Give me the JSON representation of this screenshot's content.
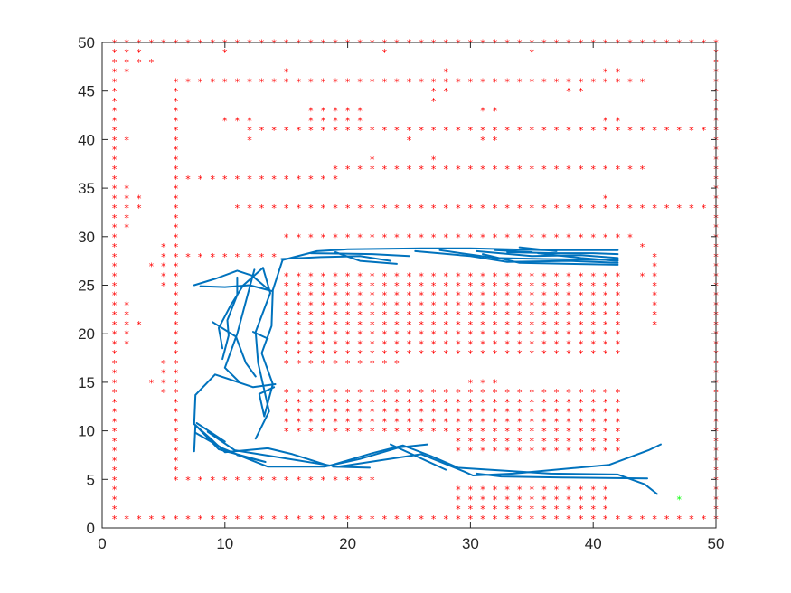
{
  "chart_data": {
    "type": "scatter",
    "xlim": [
      0,
      50
    ],
    "ylim": [
      0,
      50
    ],
    "xticks": [
      "0",
      "10",
      "20",
      "30",
      "40",
      "50"
    ],
    "yticks": [
      "0",
      "5",
      "10",
      "15",
      "20",
      "25",
      "30",
      "35",
      "40",
      "45",
      "50"
    ],
    "grid": false,
    "obstacle_color": "#ff0000",
    "path_color": "#0072bd",
    "goal_color": "#00ff00",
    "marker": "*",
    "obstacles": {
      "border": {
        "xmin": 1,
        "xmax": 50,
        "ymin": 1,
        "ymax": 50
      },
      "rows": [
        {
          "y": 46,
          "x": [
            7,
            44
          ]
        },
        {
          "y": 41,
          "x": [
            12,
            50
          ]
        },
        {
          "y": 37,
          "x": [
            19,
            44
          ]
        },
        {
          "y": 36,
          "x": [
            6,
            19
          ]
        },
        {
          "y": 33,
          "x": [
            11,
            50
          ]
        },
        {
          "y": 30,
          "x": [
            15,
            43
          ]
        },
        {
          "y": 28,
          "x": [
            6,
            14
          ]
        },
        {
          "y": 5,
          "x": [
            7,
            22
          ]
        }
      ],
      "cols": [
        {
          "x": 6,
          "y": [
            5,
            46
          ]
        },
        {
          "x": 45,
          "y": [
            21,
            28
          ]
        }
      ],
      "blocks": [
        {
          "x": [
            15,
            42
          ],
          "y": [
            18,
            26
          ]
        },
        {
          "x": [
            15,
            24
          ],
          "y": [
            17,
            17
          ]
        },
        {
          "x": [
            15,
            42
          ],
          "y": [
            10,
            14
          ]
        },
        {
          "x": [
            29,
            42
          ],
          "y": [
            8,
            9
          ]
        },
        {
          "x": [
            29,
            41
          ],
          "y": [
            1,
            4
          ]
        },
        {
          "x": [
            17,
            21
          ],
          "y": [
            42,
            43
          ]
        }
      ],
      "extra": [
        [
          2,
          49
        ],
        [
          3,
          49
        ],
        [
          2,
          48
        ],
        [
          3,
          48
        ],
        [
          2,
          47
        ],
        [
          4,
          48
        ],
        [
          2,
          40
        ],
        [
          2,
          35
        ],
        [
          2,
          34
        ],
        [
          3,
          34
        ],
        [
          2,
          33
        ],
        [
          3,
          33
        ],
        [
          2,
          32
        ],
        [
          2,
          31
        ],
        [
          10,
          49
        ],
        [
          23,
          49
        ],
        [
          35,
          49
        ],
        [
          15,
          47
        ],
        [
          28,
          47
        ],
        [
          28,
          45
        ],
        [
          27,
          45
        ],
        [
          27,
          44
        ],
        [
          38,
          45
        ],
        [
          39,
          45
        ],
        [
          6,
          45
        ],
        [
          41,
          47
        ],
        [
          42,
          47
        ],
        [
          10,
          42
        ],
        [
          11,
          42
        ],
        [
          12,
          42
        ],
        [
          12,
          40
        ],
        [
          25,
          40
        ],
        [
          31,
          43
        ],
        [
          32,
          43
        ],
        [
          31,
          40
        ],
        [
          32,
          40
        ],
        [
          41,
          42
        ],
        [
          42,
          42
        ],
        [
          22,
          38
        ],
        [
          27,
          38
        ],
        [
          41,
          34
        ],
        [
          5,
          29
        ],
        [
          5,
          28
        ],
        [
          5,
          27
        ],
        [
          4,
          27
        ],
        [
          5,
          26
        ],
        [
          5,
          25
        ],
        [
          2,
          23
        ],
        [
          2,
          22
        ],
        [
          2,
          21
        ],
        [
          3,
          21
        ],
        [
          2,
          20
        ],
        [
          2,
          19
        ],
        [
          5,
          17
        ],
        [
          5,
          16
        ],
        [
          4,
          15
        ],
        [
          5,
          15
        ],
        [
          5,
          14
        ],
        [
          44,
          29
        ],
        [
          44,
          26
        ],
        [
          30,
          15
        ],
        [
          31,
          15
        ],
        [
          32,
          15
        ]
      ]
    },
    "goal": [
      47,
      3
    ],
    "paths": [
      [
        [
          45.2,
          3.5
        ],
        [
          44.2,
          4.5
        ],
        [
          42,
          5.5
        ],
        [
          36.5,
          5.6
        ],
        [
          29,
          6.2
        ],
        [
          26.8,
          7.4
        ],
        [
          24.5,
          8.5
        ],
        [
          22,
          7.7
        ],
        [
          18.5,
          6.4
        ],
        [
          15.5,
          7.6
        ],
        [
          13.5,
          8.2
        ],
        [
          10,
          7.8
        ],
        [
          9,
          9
        ],
        [
          7.5,
          10.7
        ],
        [
          7.6,
          13.7
        ],
        [
          9.2,
          15.8
        ],
        [
          12.3,
          14.5
        ],
        [
          14.1,
          14.8
        ]
      ],
      [
        [
          45.5,
          8.6
        ],
        [
          44.5,
          8
        ],
        [
          41.3,
          6.5
        ],
        [
          33.5,
          5.6
        ],
        [
          30.2,
          5.4
        ],
        [
          29.5,
          5.8
        ],
        [
          26,
          7.6
        ],
        [
          19.2,
          6.3
        ],
        [
          10.8,
          8
        ],
        [
          8.6,
          9.9
        ]
      ],
      [
        [
          44.4,
          5.1
        ],
        [
          37.5,
          5.2
        ],
        [
          32.5,
          5.3
        ],
        [
          30.5,
          5.6
        ]
      ],
      [
        [
          26.5,
          8.6
        ],
        [
          24.2,
          8.3
        ],
        [
          21,
          7.1
        ],
        [
          18.1,
          6.3
        ],
        [
          13.5,
          6.3
        ],
        [
          11.5,
          7.3
        ],
        [
          9.8,
          8.2
        ],
        [
          7.6,
          9.8
        ]
      ],
      [
        [
          23.5,
          8.6
        ],
        [
          28,
          6
        ]
      ],
      [
        [
          18.8,
          6.3
        ],
        [
          21.8,
          6.2
        ]
      ],
      [
        [
          11,
          7.5
        ],
        [
          13.3,
          6.8
        ],
        [
          9.5,
          8.1
        ],
        [
          7.6,
          10.6
        ],
        [
          7.5,
          7.9
        ]
      ],
      [
        [
          7.7,
          10.8
        ],
        [
          10,
          8.9
        ]
      ],
      [
        [
          12.5,
          9.2
        ],
        [
          13.6,
          12
        ],
        [
          12.7,
          17
        ],
        [
          12.5,
          20.2
        ],
        [
          13.7,
          24.2
        ],
        [
          13.1,
          26.8
        ],
        [
          11.5,
          25
        ],
        [
          10.5,
          23
        ],
        [
          9.5,
          20.6
        ],
        [
          9.8,
          18.5
        ]
      ],
      [
        [
          14,
          14.5
        ],
        [
          12.8,
          13.8
        ],
        [
          13.2,
          11.5
        ],
        [
          13.9,
          14.8
        ],
        [
          13,
          18
        ],
        [
          13.8,
          20.8
        ],
        [
          13.9,
          24.5
        ],
        [
          14.7,
          27.6
        ],
        [
          17.5,
          28.5
        ],
        [
          20,
          28.7
        ],
        [
          26,
          28.8
        ],
        [
          30,
          28.8
        ],
        [
          36,
          28.6
        ],
        [
          42,
          28.6
        ]
      ],
      [
        [
          13.6,
          24.5
        ],
        [
          12.2,
          26
        ],
        [
          11,
          26.5
        ],
        [
          9.3,
          25.7
        ],
        [
          7.5,
          25
        ]
      ],
      [
        [
          13.8,
          24.4
        ],
        [
          12,
          25
        ],
        [
          10,
          24.8
        ],
        [
          8,
          24.9
        ]
      ],
      [
        [
          11,
          25.8
        ],
        [
          11,
          24
        ],
        [
          10.2,
          21.4
        ],
        [
          10.3,
          19.8
        ],
        [
          9.8,
          17.4
        ]
      ],
      [
        [
          12.4,
          26.6
        ],
        [
          11,
          20
        ],
        [
          10,
          16.5
        ],
        [
          11.2,
          15
        ]
      ],
      [
        [
          9,
          21.2
        ],
        [
          10.9,
          19.7
        ],
        [
          11.7,
          17
        ],
        [
          12.5,
          15.6
        ]
      ],
      [
        [
          13.5,
          19.5
        ],
        [
          12.3,
          20.2
        ]
      ],
      [
        [
          14.6,
          27.7
        ],
        [
          17.8,
          27.9
        ],
        [
          21,
          28
        ],
        [
          23.5,
          27.5
        ]
      ],
      [
        [
          17,
          28.3
        ],
        [
          22,
          28.2
        ],
        [
          25,
          28
        ]
      ],
      [
        [
          19,
          28.4
        ],
        [
          21,
          27.5
        ],
        [
          24,
          27.2
        ]
      ],
      [
        [
          25.5,
          28.5
        ],
        [
          30,
          28
        ],
        [
          33,
          27.4
        ],
        [
          38,
          27.5
        ],
        [
          42,
          27.3
        ]
      ],
      [
        [
          27.5,
          28.6
        ],
        [
          32,
          27.8
        ],
        [
          36,
          27.7
        ],
        [
          42,
          27.6
        ]
      ],
      [
        [
          30.5,
          28.5
        ],
        [
          35,
          28
        ],
        [
          39,
          28.1
        ],
        [
          42,
          27.8
        ]
      ],
      [
        [
          33,
          28.4
        ],
        [
          37,
          28.3
        ],
        [
          40,
          28.3
        ],
        [
          42,
          28.2
        ]
      ],
      [
        [
          31,
          28.2
        ],
        [
          34,
          27.3
        ],
        [
          38,
          27.2
        ],
        [
          42,
          27.1
        ]
      ],
      [
        [
          35.5,
          28.3
        ],
        [
          39,
          27.8
        ],
        [
          42,
          27.5
        ]
      ],
      [
        [
          32,
          28.6
        ],
        [
          35,
          28.4
        ]
      ],
      [
        [
          34,
          28.9
        ],
        [
          37,
          28.5
        ]
      ]
    ]
  }
}
